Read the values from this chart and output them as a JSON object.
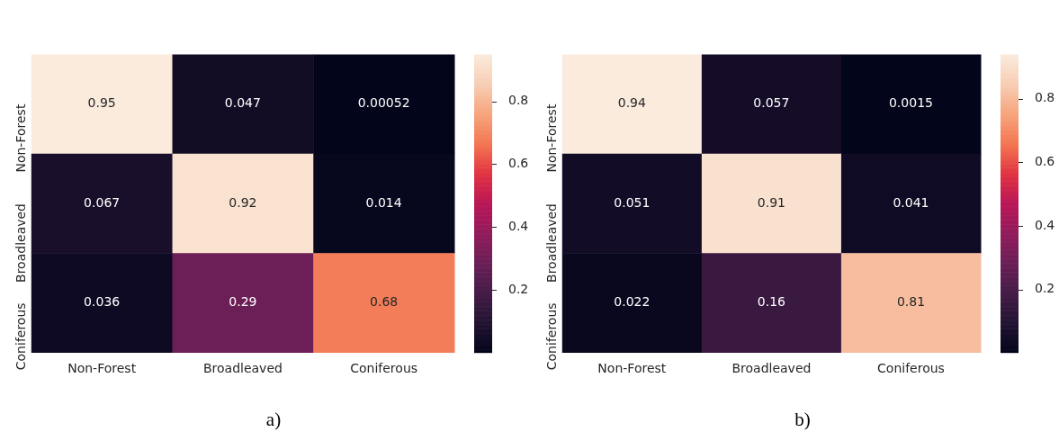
{
  "chart_data": [
    {
      "type": "heatmap",
      "categories": [
        "Non-Forest",
        "Broadleaved",
        "Coniferous"
      ],
      "y_categories": [
        "Non-Forest",
        "Broadleaved",
        "Coniferous"
      ],
      "cells": [
        [
          0.95,
          0.047,
          0.00052
        ],
        [
          0.067,
          0.92,
          0.014
        ],
        [
          0.036,
          0.29,
          0.68
        ]
      ],
      "clim": [
        0.00052,
        0.95
      ],
      "cticks": [
        0.2,
        0.4,
        0.6,
        0.8
      ],
      "data_labels": true,
      "annotations": [
        "a)"
      ]
    },
    {
      "type": "heatmap",
      "categories": [
        "Non-Forest",
        "Broadleaved",
        "Coniferous"
      ],
      "y_categories": [
        "Non-Forest",
        "Broadleaved",
        "Coniferous"
      ],
      "cells": [
        [
          0.94,
          0.057,
          0.0015
        ],
        [
          0.051,
          0.91,
          0.041
        ],
        [
          0.022,
          0.16,
          0.81
        ]
      ],
      "clim": [
        0.0015,
        0.94
      ],
      "cticks": [
        0.2,
        0.4,
        0.6,
        0.8
      ],
      "data_labels": true,
      "annotations": [
        "b)"
      ]
    }
  ]
}
